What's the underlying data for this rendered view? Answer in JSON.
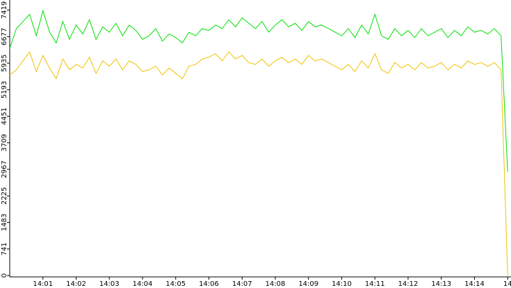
{
  "chart_data": {
    "type": "line",
    "x": [
      0,
      0.2,
      0.4,
      0.6,
      0.8,
      1,
      1.2,
      1.4,
      1.6,
      1.8,
      2,
      2.2,
      2.4,
      2.6,
      2.8,
      3,
      3.2,
      3.4,
      3.6,
      3.8,
      4,
      4.2,
      4.4,
      4.6,
      4.8,
      5,
      5.2,
      5.4,
      5.6,
      5.8,
      6,
      6.2,
      6.4,
      6.6,
      6.8,
      7,
      7.2,
      7.4,
      7.6,
      7.8,
      8,
      8.2,
      8.4,
      8.6,
      8.8,
      9,
      9.2,
      9.4,
      9.6,
      9.8,
      10,
      10.2,
      10.4,
      10.6,
      10.8,
      11,
      11.2,
      11.4,
      11.6,
      11.8,
      12,
      12.2,
      12.4,
      12.6,
      12.8,
      13,
      13.2,
      13.4,
      13.6,
      13.8,
      14,
      14.2,
      14.4,
      14.6,
      14.8,
      15
    ],
    "series": [
      {
        "color": "#00e000",
        "values": [
          6350,
          6900,
          7100,
          7300,
          6700,
          7400,
          6800,
          6500,
          7100,
          6600,
          7000,
          6750,
          7150,
          6600,
          6950,
          6800,
          7050,
          6700,
          7000,
          6850,
          6600,
          6700,
          6900,
          6550,
          6750,
          6650,
          6500,
          6800,
          6700,
          6900,
          6850,
          7000,
          6900,
          7150,
          6950,
          7200,
          7050,
          6900,
          7100,
          6800,
          7000,
          7150,
          6950,
          7050,
          6850,
          7100,
          6950,
          7000,
          6900,
          6800,
          6700,
          6900,
          6650,
          7000,
          6750,
          7300,
          6700,
          6600,
          6900,
          6700,
          6850,
          6650,
          6900,
          6700,
          6800,
          6900,
          6650,
          6850,
          6700,
          6950,
          6800,
          6850,
          6750,
          6900,
          6700,
          2900
        ]
      },
      {
        "color": "#f0c000",
        "values": [
          5600,
          5750,
          6000,
          6250,
          5700,
          6150,
          5800,
          5500,
          6050,
          5750,
          5900,
          5800,
          6100,
          5650,
          6000,
          5850,
          6050,
          5750,
          6000,
          5900,
          5700,
          5750,
          5850,
          5600,
          5800,
          5650,
          5500,
          5850,
          5900,
          6050,
          6100,
          6200,
          6000,
          6250,
          6050,
          6150,
          5950,
          5900,
          6050,
          5850,
          6000,
          6100,
          5950,
          6050,
          5900,
          6150,
          6000,
          6050,
          5950,
          5850,
          5750,
          5900,
          5700,
          6000,
          5800,
          6200,
          5750,
          5650,
          5950,
          5800,
          5900,
          5750,
          5950,
          5800,
          5850,
          5950,
          5750,
          5900,
          5800,
          6000,
          5900,
          5950,
          5850,
          5950,
          5750,
          0
        ]
      }
    ],
    "xlim": [
      0,
      15.1
    ],
    "xticks": [
      {
        "value": 1,
        "label": "14:01"
      },
      {
        "value": 2,
        "label": "14:02"
      },
      {
        "value": 3,
        "label": "14:03"
      },
      {
        "value": 4,
        "label": "14:04"
      },
      {
        "value": 5,
        "label": "14:05"
      },
      {
        "value": 6,
        "label": "14:06"
      },
      {
        "value": 7,
        "label": "14:07"
      },
      {
        "value": 8,
        "label": "14:08"
      },
      {
        "value": 9,
        "label": "14:09"
      },
      {
        "value": 10,
        "label": "14:10"
      },
      {
        "value": 11,
        "label": "14:11"
      },
      {
        "value": 12,
        "label": "14:12"
      },
      {
        "value": 13,
        "label": "14:13"
      },
      {
        "value": 14,
        "label": "14:14"
      },
      {
        "value": 15,
        "label": "14"
      }
    ],
    "ylim": [
      0,
      7700
    ],
    "yticks": [
      0,
      741,
      1483,
      2225,
      2967,
      3709,
      4451,
      5193,
      5935,
      6677,
      7419
    ],
    "grid": false
  }
}
